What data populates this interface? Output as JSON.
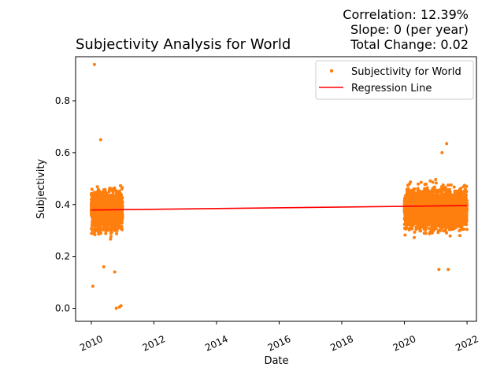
{
  "chart_data": {
    "type": "scatter",
    "title": "Subjectivity Analysis for World",
    "stats": [
      "Correlation: 12.39%",
      "Slope: 0 (per year)",
      "Total Change: 0.02"
    ],
    "xlabel": "Date",
    "ylabel": "Subjectivity",
    "xlim": [
      2009.5,
      2022.3
    ],
    "ylim": [
      -0.05,
      0.97
    ],
    "x_ticks": [
      2010,
      2012,
      2014,
      2016,
      2018,
      2020,
      2022
    ],
    "y_ticks": [
      0.0,
      0.2,
      0.4,
      0.6,
      0.8
    ],
    "y_tick_labels": [
      "0.0",
      "0.2",
      "0.4",
      "0.6",
      "0.8"
    ],
    "legend_position": "top-right",
    "series": [
      {
        "name": "Subjectivity for World",
        "kind": "scatter",
        "color": "#ff7f0e",
        "clusters": [
          {
            "x_range": [
              2010.0,
              2011.0
            ],
            "mean": 0.38,
            "spread": 0.05
          },
          {
            "x_range": [
              2020.0,
              2022.0
            ],
            "mean": 0.385,
            "spread": 0.05
          }
        ],
        "outliers": [
          {
            "x": 2010.1,
            "y": 0.94
          },
          {
            "x": 2010.3,
            "y": 0.65
          },
          {
            "x": 2010.05,
            "y": 0.085
          },
          {
            "x": 2010.8,
            "y": 0.0
          },
          {
            "x": 2010.95,
            "y": 0.01
          },
          {
            "x": 2010.9,
            "y": 0.005
          },
          {
            "x": 2010.75,
            "y": 0.14
          },
          {
            "x": 2010.4,
            "y": 0.16
          },
          {
            "x": 2021.35,
            "y": 0.635
          },
          {
            "x": 2021.2,
            "y": 0.6
          },
          {
            "x": 2021.1,
            "y": 0.15
          },
          {
            "x": 2021.4,
            "y": 0.15
          }
        ]
      },
      {
        "name": "Regression Line",
        "kind": "line",
        "color": "#ff0000",
        "x": [
          2010.0,
          2022.0
        ],
        "y": [
          0.379,
          0.396
        ]
      }
    ]
  }
}
